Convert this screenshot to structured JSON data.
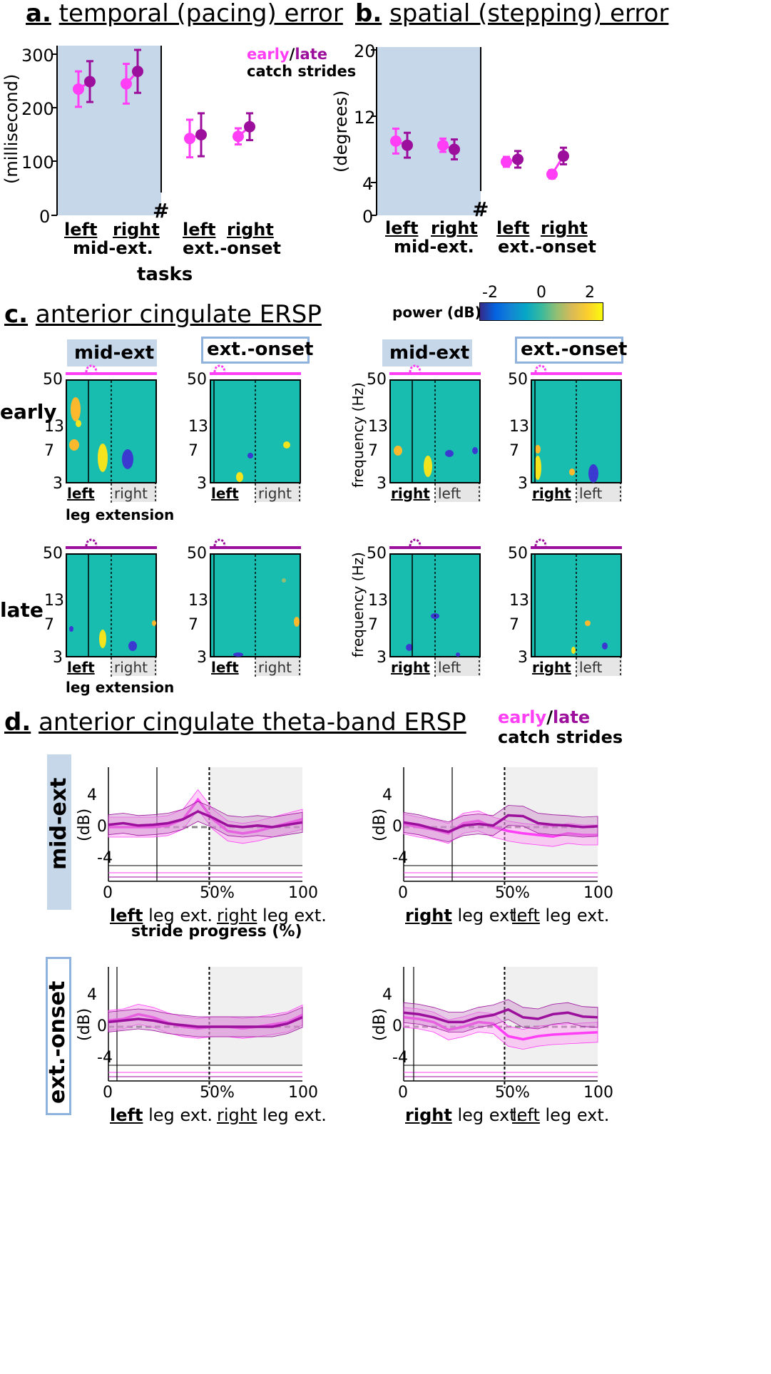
{
  "panel_a": {
    "title_letter": "a.",
    "title_text": "temporal (pacing) error",
    "ylabel": "(millisecond)",
    "yticks": [
      "300",
      "200",
      "100",
      "0"
    ],
    "legend_early": "early",
    "legend_sep": "/",
    "legend_late": "late",
    "legend_line2": "catch strides",
    "xlabel": "tasks"
  },
  "panel_b": {
    "title_letter": "b.",
    "title_text": "spatial (stepping) error",
    "ylabel": "(degrees)",
    "yticks": [
      "20",
      "12",
      "4",
      "0"
    ]
  },
  "xcats": {
    "left": "left",
    "right": "right",
    "mid": "mid-ext.",
    "onset": "ext.-onset",
    "hash": "#"
  },
  "panel_c": {
    "title_letter": "c.",
    "title_text": "anterior cingulate ERSP",
    "colorbar_label": "power (dB)",
    "colorbar_ticks": [
      "-2",
      "0",
      "2"
    ],
    "mid_ext": "mid-ext",
    "ext_onset": "ext.-onset",
    "row_early": "early",
    "row_late": "late",
    "freq_ticks": [
      "50",
      "13",
      "7",
      "3"
    ],
    "freq_label": "frequency (Hz)",
    "left": "left",
    "right": "right",
    "leg_extension": "leg extension"
  },
  "panel_d": {
    "title_letter": "d.",
    "title_text": "anterior cingulate theta-band ERSP",
    "legend_early": "early",
    "legend_sep": "/",
    "legend_late": "late",
    "legend_line2": "catch strides",
    "row_mid": "mid-ext",
    "row_onset": "ext.-onset",
    "ylabel": "(dB)",
    "yticks": [
      "4",
      "0",
      "-4"
    ],
    "xticks": [
      "0",
      "50%",
      "100"
    ],
    "left_bold": "left",
    "right_bold": "right",
    "leg_ext": "leg ext.",
    "xlabel": "stride progress (%)"
  },
  "colors": {
    "early": "#ff3ef5",
    "late": "#9c0f9c",
    "shade": "#c6d7ea",
    "heat_bg": "#18bdb0"
  },
  "chart_data": [
    {
      "type": "scatter",
      "title": "temporal (pacing) error",
      "ylabel": "(millisecond)",
      "ylim": [
        0,
        310
      ],
      "categories": [
        "left mid-ext.",
        "right mid-ext.",
        "left ext.-onset",
        "right ext.-onset"
      ],
      "series": [
        {
          "name": "early",
          "values": [
            235,
            245,
            143,
            147
          ],
          "err": [
            33,
            37,
            35,
            15
          ]
        },
        {
          "name": "late",
          "values": [
            249,
            268,
            150,
            165
          ],
          "err": [
            38,
            40,
            40,
            25
          ]
        }
      ]
    },
    {
      "type": "scatter",
      "title": "spatial (stepping) error",
      "ylabel": "(degrees)",
      "ylim": [
        0,
        20
      ],
      "categories": [
        "left mid-ext.",
        "right mid-ext.",
        "left ext.-onset",
        "right ext.-onset"
      ],
      "series": [
        {
          "name": "early",
          "values": [
            9,
            8.5,
            6.5,
            5
          ],
          "err": [
            1.5,
            0.8,
            0.6,
            0.5
          ]
        },
        {
          "name": "late",
          "values": [
            8.5,
            8,
            6.8,
            7.2
          ],
          "err": [
            1.5,
            1.2,
            1.0,
            1.0
          ]
        }
      ]
    }
  ]
}
